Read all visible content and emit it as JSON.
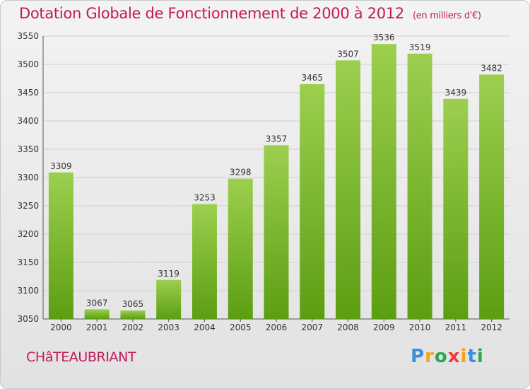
{
  "header": {
    "title": "Dotation Globale de Fonctionnement de 2000 à 2012",
    "subtitle": "(en milliers d'€)"
  },
  "footer": {
    "city": "CHâTEAUBRIANT",
    "logo": [
      "P",
      "r",
      "o",
      "x",
      "i",
      "t",
      "i"
    ]
  },
  "colors": {
    "title": "#c2185b",
    "bar_top": "#9ccf4e",
    "bar_bottom": "#5c9e12",
    "logo": [
      "#3a8ede",
      "#f4a21a",
      "#2ea84a",
      "#ef3b3b",
      "#f4a21a",
      "#3a8ede",
      "#2ea84a"
    ]
  },
  "chart_data": {
    "type": "bar",
    "categories": [
      "2000",
      "2001",
      "2002",
      "2003",
      "2004",
      "2005",
      "2006",
      "2007",
      "2008",
      "2009",
      "2010",
      "2011",
      "2012"
    ],
    "values": [
      3309,
      3067,
      3065,
      3119,
      3253,
      3298,
      3357,
      3465,
      3507,
      3536,
      3519,
      3439,
      3482
    ],
    "ylim": [
      3050,
      3550
    ],
    "yticks": [
      3050,
      3100,
      3150,
      3200,
      3250,
      3300,
      3350,
      3400,
      3450,
      3500,
      3550
    ],
    "grid": true
  }
}
